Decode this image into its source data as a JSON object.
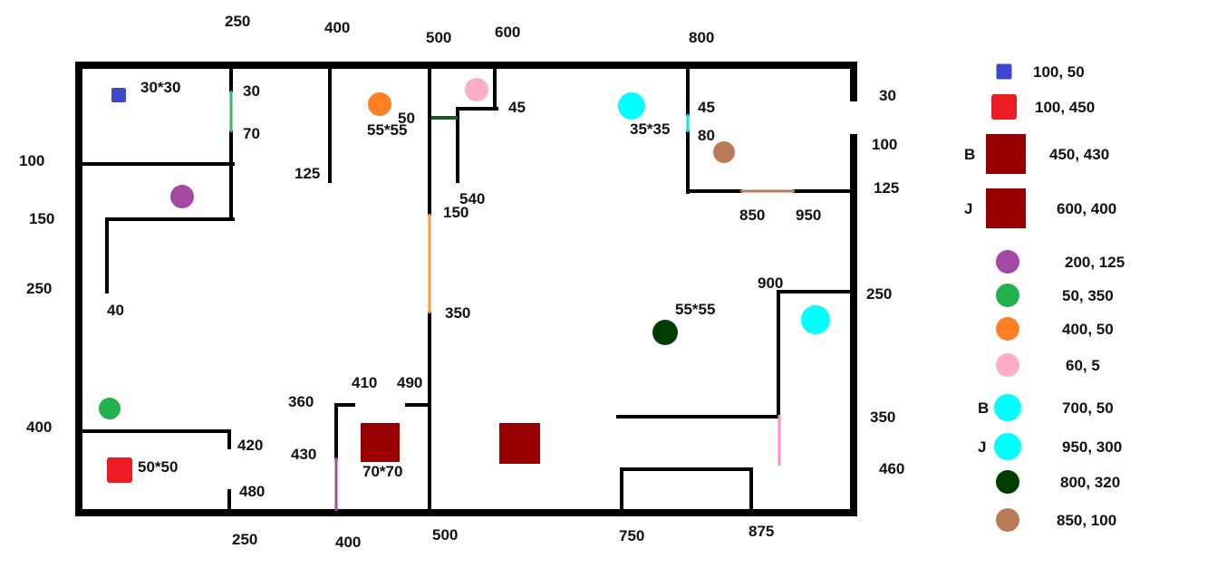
{
  "colors": {
    "wall": "#000000",
    "blue": "#3f48cc",
    "red": "#ed1c24",
    "maroon": "#990000",
    "purple": "#a349a4",
    "green": "#22b14c",
    "orange": "#ff7f27",
    "pink": "#ffaec9",
    "cyan": "#00ffff",
    "darkgreen": "#003d00",
    "brown": "#b97a57",
    "door_green": "#1e5a1e",
    "door_light_green": "#3cb371",
    "door_orange": "#ff9a3c",
    "door_purple": "#a349a4",
    "door_pink": "#ff8fc0",
    "door_cyan": "#00e5ff",
    "door_brown": "#b97a57"
  },
  "labels": {
    "top_250": "250",
    "top_400": "400",
    "top_500": "500",
    "top_600": "600",
    "top_800": "800",
    "bottom_250": "250",
    "bottom_400": "400",
    "bottom_500": "500",
    "bottom_750": "750",
    "bottom_875": "875",
    "left_100": "100",
    "left_150": "150",
    "left_250": "250",
    "left_400": "400",
    "right_30": "30",
    "right_100": "100",
    "right_125": "125",
    "right_250": "250",
    "right_350": "350",
    "right_460": "460",
    "blue_size": "30*30",
    "door_30": "30",
    "door_70": "70",
    "wall_125": "125",
    "orange_size": "55*55",
    "door_50": "50",
    "door_45a": "45",
    "wall_540": "540",
    "door_150": "150",
    "door_350": "350",
    "cyan_size": "35*35",
    "door_45b": "45",
    "door_80": "80",
    "door_850": "850",
    "door_950": "950",
    "wall_40": "40",
    "wall_900": "900",
    "darkgreen_size": "55*55",
    "wall_360": "360",
    "wall_410": "410",
    "wall_490": "490",
    "wall_430": "430",
    "maroon_size": "70*70",
    "door_420": "420",
    "door_480": "480",
    "red_size": "50*50"
  },
  "legend": [
    {
      "shape": "square",
      "color": "blue",
      "tag": "",
      "coords": "100, 50"
    },
    {
      "shape": "square",
      "color": "red",
      "tag": "",
      "coords": "100, 450"
    },
    {
      "shape": "bigsquare",
      "color": "maroon",
      "tag": "B",
      "coords": "450, 430"
    },
    {
      "shape": "bigsquare",
      "color": "maroon",
      "tag": "J",
      "coords": "600, 400"
    },
    {
      "shape": "circle",
      "color": "purple",
      "tag": "",
      "coords": "200, 125"
    },
    {
      "shape": "circle",
      "color": "green",
      "tag": "",
      "coords": "50, 350"
    },
    {
      "shape": "circle",
      "color": "orange",
      "tag": "",
      "coords": "400, 50"
    },
    {
      "shape": "circle",
      "color": "pink",
      "tag": "",
      "coords": "60, 5"
    },
    {
      "shape": "circle",
      "color": "cyan",
      "tag": "B",
      "coords": "700, 50"
    },
    {
      "shape": "circle",
      "color": "cyan",
      "tag": "J",
      "coords": "950, 300"
    },
    {
      "shape": "circle",
      "color": "darkgreen",
      "tag": "",
      "coords": "800, 320"
    },
    {
      "shape": "circle",
      "color": "brown",
      "tag": "",
      "coords": "850, 100"
    }
  ]
}
